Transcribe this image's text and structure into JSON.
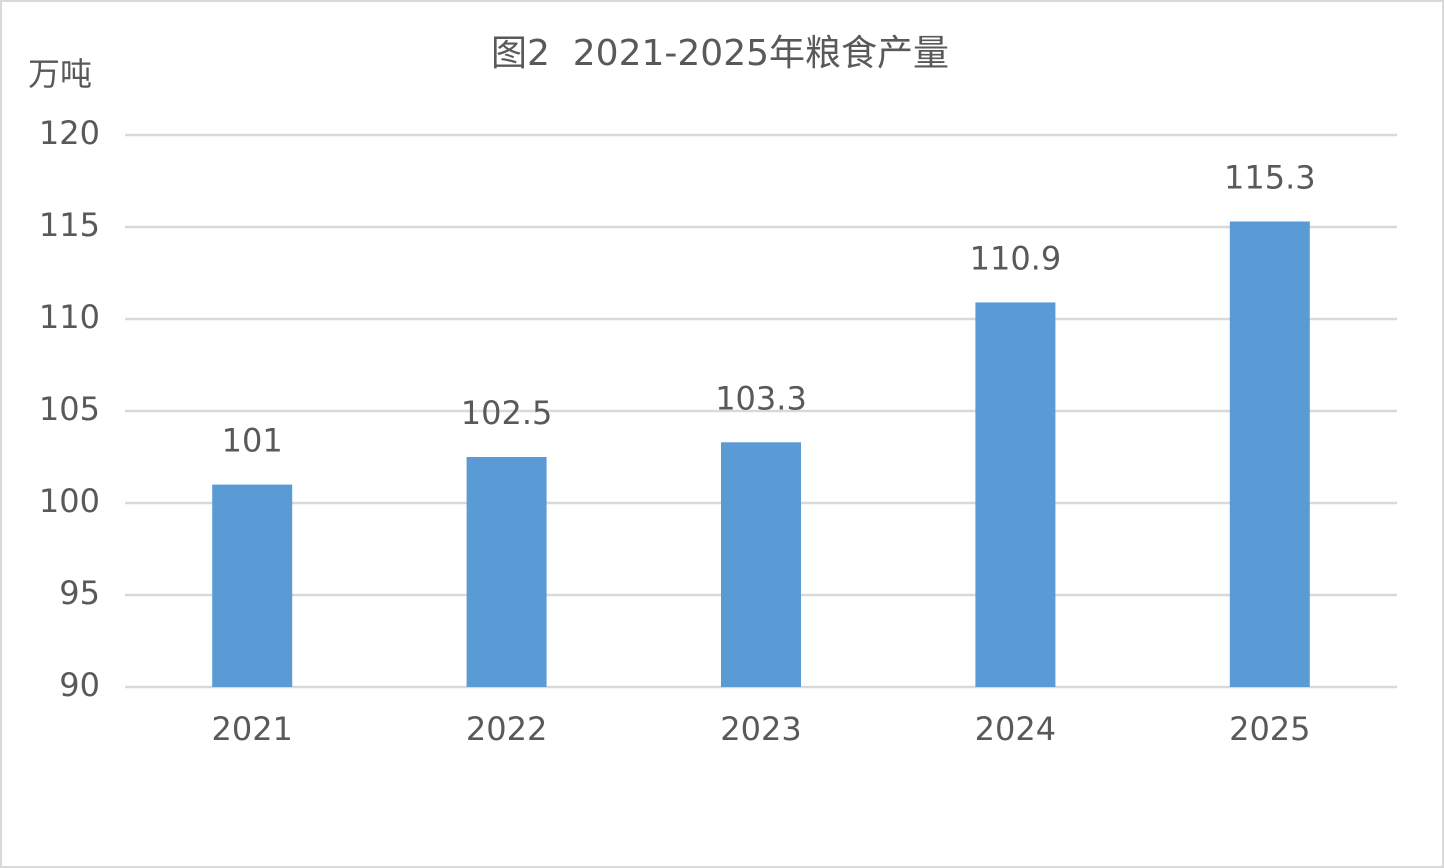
{
  "chart_data": {
    "type": "bar",
    "title": "图2  2021-2025年粮食产量",
    "y_label": "万吨",
    "categories": [
      "2021",
      "2022",
      "2023",
      "2024",
      "2025"
    ],
    "values": [
      101,
      102.5,
      103.3,
      110.9,
      115.3
    ],
    "color": "#5b9bd5",
    "ylim": [
      90,
      120
    ],
    "yticks": [
      90,
      95,
      100,
      105,
      110,
      115,
      120
    ],
    "grid": true,
    "data_labels": true
  }
}
